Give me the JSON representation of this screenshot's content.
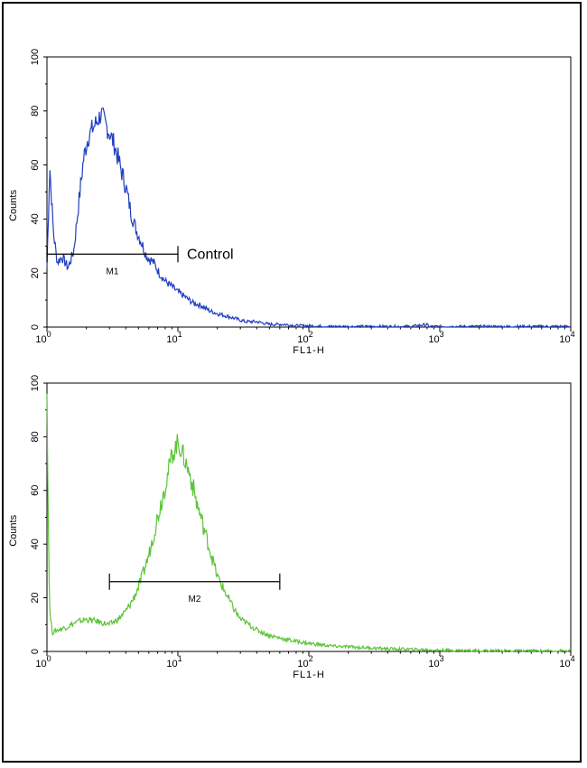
{
  "chart_data": [
    {
      "type": "line",
      "title": "",
      "xlabel": "FL1-H",
      "ylabel": "Counts",
      "x_scale": "log",
      "xlim": [
        1,
        10000
      ],
      "ylim": [
        0,
        100
      ],
      "x_ticks": [
        1,
        10,
        100,
        1000,
        10000
      ],
      "y_ticks": [
        0,
        20,
        40,
        60,
        80,
        100
      ],
      "x_tick_labels": [
        {
          "base": "10",
          "exp": "0"
        },
        {
          "base": "10",
          "exp": "1"
        },
        {
          "base": "10",
          "exp": "2"
        },
        {
          "base": "10",
          "exp": "3"
        },
        {
          "base": "10",
          "exp": "4"
        }
      ],
      "y_tick_labels": [
        "0",
        "20",
        "40",
        "60",
        "80",
        "100"
      ],
      "grid": false,
      "color": "#1f3fbf",
      "series": [
        {
          "x": [
            1,
            1.05,
            1.12,
            1.2,
            1.3,
            1.45,
            1.6,
            1.75,
            1.9,
            2.05,
            2.2,
            2.4,
            2.6,
            2.8,
            3.0,
            3.3,
            3.6,
            4.0,
            4.4,
            4.8,
            5.3,
            5.8,
            6.5,
            7.2,
            8.0,
            9.0,
            10.0,
            11.5,
            13,
            15,
            17.5,
            20,
            24,
            28,
            33,
            40,
            50,
            65,
            80,
            100,
            150,
            300,
            600,
            800,
            820,
            1500,
            5000,
            10000
          ],
          "y": [
            22,
            60,
            35,
            24,
            26,
            22,
            28,
            46,
            62,
            70,
            73,
            76,
            79,
            75,
            72,
            67,
            60,
            52,
            42,
            36,
            31,
            26,
            24,
            20,
            17,
            15,
            13,
            11,
            9,
            8,
            6,
            5,
            4,
            3,
            2,
            2,
            1,
            1,
            0.5,
            0.5,
            0.2,
            0.2,
            0.2,
            1,
            0.2,
            0.2,
            0.2,
            0.2
          ]
        }
      ],
      "gate": {
        "label": "M1",
        "x_start": 1,
        "x_end": 10,
        "y": 27
      },
      "annotation": {
        "text": "Control",
        "x": 11,
        "y": 27
      }
    },
    {
      "type": "line",
      "title": "",
      "xlabel": "FL1-H",
      "ylabel": "Counts",
      "x_scale": "log",
      "xlim": [
        1,
        10000
      ],
      "ylim": [
        0,
        100
      ],
      "x_ticks": [
        1,
        10,
        100,
        1000,
        10000
      ],
      "y_ticks": [
        0,
        20,
        40,
        60,
        80,
        100
      ],
      "x_tick_labels": [
        {
          "base": "10",
          "exp": "0"
        },
        {
          "base": "10",
          "exp": "1"
        },
        {
          "base": "10",
          "exp": "2"
        },
        {
          "base": "10",
          "exp": "3"
        },
        {
          "base": "10",
          "exp": "4"
        }
      ],
      "y_tick_labels": [
        "0",
        "20",
        "40",
        "60",
        "80",
        "100"
      ],
      "grid": false,
      "color": "#5cc43a",
      "series": [
        {
          "x": [
            1,
            1.02,
            1.05,
            1.1,
            1.2,
            1.4,
            1.7,
            2.0,
            2.5,
            3.0,
            3.5,
            4.0,
            4.5,
            5.0,
            5.5,
            6.0,
            7.0,
            8.0,
            9.0,
            10.0,
            11,
            12.5,
            14,
            16,
            18,
            20,
            23,
            26,
            30,
            35,
            40,
            50,
            60,
            75,
            100,
            150,
            250,
            400,
            700,
            1000,
            2000,
            5000,
            10000
          ],
          "y": [
            100,
            53,
            15,
            7,
            8,
            9,
            11,
            12,
            11,
            10,
            12,
            15,
            19,
            24,
            30,
            36,
            50,
            62,
            73,
            78,
            73,
            65,
            55,
            45,
            36,
            28,
            22,
            17,
            12,
            10,
            8,
            6,
            5,
            4,
            3,
            2,
            1.5,
            1,
            0.7,
            0.5,
            0.3,
            0.2,
            0.2
          ]
        }
      ],
      "gate": {
        "label": "M2",
        "x_start": 3,
        "x_end": 60,
        "y": 26
      }
    }
  ]
}
